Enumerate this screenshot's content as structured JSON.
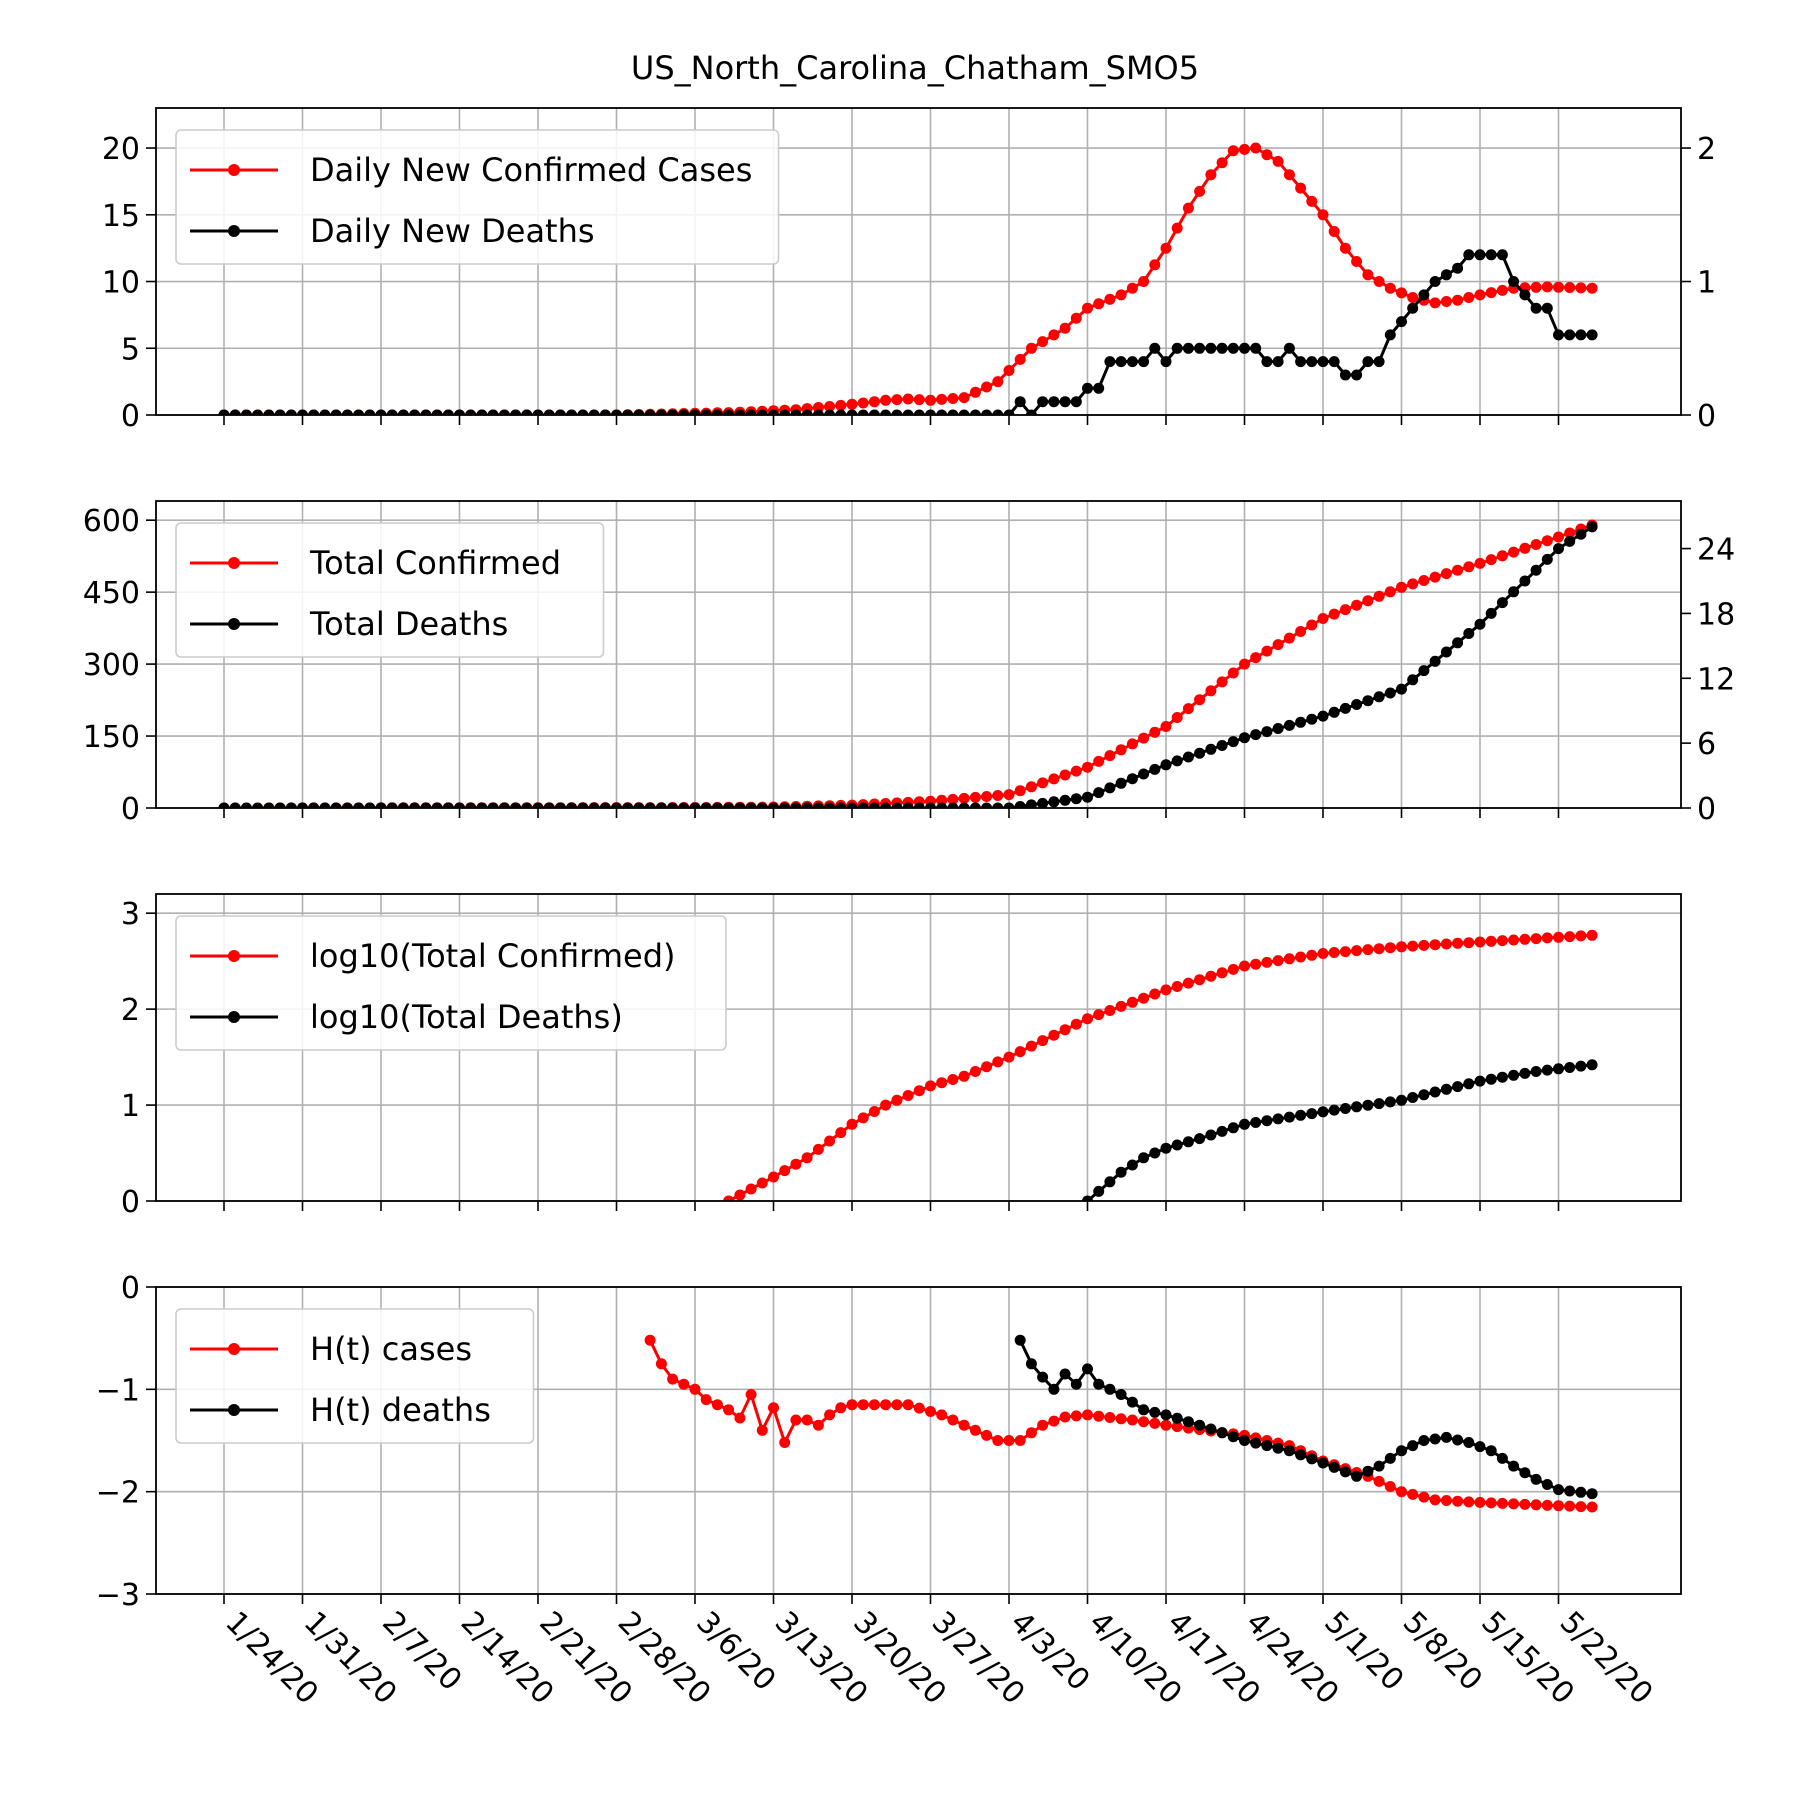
{
  "title": "US_North_Carolina_Chatham_SMO5",
  "x_tick_labels": [
    "1/24/20",
    "1/31/20",
    "2/7/20",
    "2/14/20",
    "2/21/20",
    "2/28/20",
    "3/6/20",
    "3/13/20",
    "3/20/20",
    "3/27/20",
    "4/3/20",
    "4/10/20",
    "4/17/20",
    "4/24/20",
    "5/1/20",
    "5/8/20",
    "5/15/20",
    "5/22/20"
  ],
  "chart_data": [
    {
      "type": "line",
      "panel": "daily",
      "x_type": "date",
      "x_range": [
        "1/24/20",
        "5/25/20"
      ],
      "ylim": [
        0,
        23
      ],
      "yticks": [
        0,
        5,
        10,
        15,
        20
      ],
      "y2lim": [
        0,
        2.3
      ],
      "y2ticks": [
        0,
        1,
        2
      ],
      "grid": true,
      "legend_position": "upper-left",
      "series": [
        {
          "name": "Daily New Confirmed Cases",
          "color": "#ff0000",
          "axis": "left",
          "points": [
            [
              "1/24/20",
              0
            ],
            [
              "2/28/20",
              0
            ],
            [
              "3/10/20",
              0.2
            ],
            [
              "3/15/20",
              0.4
            ],
            [
              "3/20/20",
              0.8
            ],
            [
              "3/23/20",
              1.1
            ],
            [
              "3/25/20",
              1.2
            ],
            [
              "3/27/20",
              1.1
            ],
            [
              "3/30/20",
              1.3
            ],
            [
              "4/2/20",
              2.5
            ],
            [
              "4/5/20",
              5
            ],
            [
              "4/8/20",
              6.5
            ],
            [
              "4/10/20",
              8
            ],
            [
              "4/13/20",
              9
            ],
            [
              "4/15/20",
              10
            ],
            [
              "4/17/20",
              12.5
            ],
            [
              "4/19/20",
              15.5
            ],
            [
              "4/21/20",
              18
            ],
            [
              "4/23/20",
              19.8
            ],
            [
              "4/25/20",
              20
            ],
            [
              "4/27/20",
              19
            ],
            [
              "4/29/20",
              17
            ],
            [
              "5/1/20",
              15
            ],
            [
              "5/3/20",
              12.5
            ],
            [
              "5/5/20",
              10.5
            ],
            [
              "5/7/20",
              9.5
            ],
            [
              "5/9/20",
              8.8
            ],
            [
              "5/11/20",
              8.4
            ],
            [
              "5/13/20",
              8.6
            ],
            [
              "5/15/20",
              9
            ],
            [
              "5/18/20",
              9.5
            ],
            [
              "5/21/20",
              9.6
            ],
            [
              "5/25/20",
              9.5
            ]
          ]
        },
        {
          "name": "Daily New Deaths",
          "color": "#000000",
          "axis": "right",
          "points": [
            [
              "1/24/20",
              0
            ],
            [
              "4/3/20",
              0
            ],
            [
              "4/4/20",
              0.1
            ],
            [
              "4/5/20",
              0
            ],
            [
              "4/6/20",
              0.1
            ],
            [
              "4/9/20",
              0.1
            ],
            [
              "4/10/20",
              0.2
            ],
            [
              "4/11/20",
              0.2
            ],
            [
              "4/12/20",
              0.4
            ],
            [
              "4/15/20",
              0.4
            ],
            [
              "4/16/20",
              0.5
            ],
            [
              "4/17/20",
              0.4
            ],
            [
              "4/18/20",
              0.5
            ],
            [
              "4/25/20",
              0.5
            ],
            [
              "4/26/20",
              0.4
            ],
            [
              "4/27/20",
              0.4
            ],
            [
              "4/28/20",
              0.5
            ],
            [
              "4/29/20",
              0.4
            ],
            [
              "5/2/20",
              0.4
            ],
            [
              "5/3/20",
              0.3
            ],
            [
              "5/4/20",
              0.3
            ],
            [
              "5/5/20",
              0.4
            ],
            [
              "5/6/20",
              0.4
            ],
            [
              "5/7/20",
              0.6
            ],
            [
              "5/9/20",
              0.8
            ],
            [
              "5/11/20",
              1.0
            ],
            [
              "5/13/20",
              1.1
            ],
            [
              "5/14/20",
              1.2
            ],
            [
              "5/17/20",
              1.2
            ],
            [
              "5/18/20",
              1.0
            ],
            [
              "5/19/20",
              0.9
            ],
            [
              "5/20/20",
              0.8
            ],
            [
              "5/21/20",
              0.8
            ],
            [
              "5/22/20",
              0.6
            ],
            [
              "5/25/20",
              0.6
            ]
          ]
        }
      ]
    },
    {
      "type": "line",
      "panel": "total",
      "x_type": "date",
      "x_range": [
        "1/24/20",
        "5/25/20"
      ],
      "ylim": [
        0,
        640
      ],
      "yticks": [
        0,
        150,
        300,
        450,
        600
      ],
      "y2lim": [
        0,
        28.4
      ],
      "y2ticks": [
        0,
        6,
        12,
        18,
        24
      ],
      "grid": true,
      "legend_position": "upper-left",
      "series": [
        {
          "name": "Total Confirmed",
          "color": "#ff0000",
          "axis": "left",
          "points": [
            [
              "1/24/20",
              0
            ],
            [
              "3/6/20",
              1
            ],
            [
              "3/13/20",
              2
            ],
            [
              "3/20/20",
              6
            ],
            [
              "3/27/20",
              14
            ],
            [
              "4/3/20",
              28
            ],
            [
              "4/10/20",
              85
            ],
            [
              "4/17/20",
              170
            ],
            [
              "4/24/20",
              300
            ],
            [
              "5/1/20",
              395
            ],
            [
              "5/8/20",
              460
            ],
            [
              "5/15/20",
              510
            ],
            [
              "5/22/20",
              565
            ],
            [
              "5/25/20",
              590
            ]
          ]
        },
        {
          "name": "Total Deaths",
          "color": "#000000",
          "axis": "right",
          "points": [
            [
              "1/24/20",
              0
            ],
            [
              "4/3/20",
              0
            ],
            [
              "4/10/20",
              1
            ],
            [
              "4/17/20",
              4
            ],
            [
              "4/24/20",
              6.5
            ],
            [
              "5/1/20",
              8.5
            ],
            [
              "5/8/20",
              11
            ],
            [
              "5/15/20",
              17
            ],
            [
              "5/22/20",
              24
            ],
            [
              "5/25/20",
              26
            ]
          ]
        }
      ]
    },
    {
      "type": "line",
      "panel": "log",
      "x_type": "date",
      "x_range": [
        "1/24/20",
        "5/25/20"
      ],
      "ylim": [
        0,
        3.2
      ],
      "yticks": [
        0,
        1,
        2,
        3
      ],
      "grid": true,
      "legend_position": "upper-left",
      "series": [
        {
          "name": "log10(Total Confirmed)",
          "color": "#ff0000",
          "axis": "left",
          "points": [
            [
              "3/9/20",
              0
            ],
            [
              "3/13/20",
              0.25
            ],
            [
              "3/16/20",
              0.45
            ],
            [
              "3/20/20",
              0.8
            ],
            [
              "3/23/20",
              1.0
            ],
            [
              "3/27/20",
              1.2
            ],
            [
              "3/30/20",
              1.3
            ],
            [
              "4/3/20",
              1.5
            ],
            [
              "4/10/20",
              1.9
            ],
            [
              "4/17/20",
              2.2
            ],
            [
              "4/24/20",
              2.45
            ],
            [
              "5/1/20",
              2.58
            ],
            [
              "5/8/20",
              2.65
            ],
            [
              "5/15/20",
              2.7
            ],
            [
              "5/25/20",
              2.77
            ]
          ]
        },
        {
          "name": "log10(Total Deaths)",
          "color": "#000000",
          "axis": "left",
          "points": [
            [
              "4/10/20",
              0
            ],
            [
              "4/11/20",
              0.1
            ],
            [
              "4/13/20",
              0.3
            ],
            [
              "4/15/20",
              0.45
            ],
            [
              "4/17/20",
              0.55
            ],
            [
              "4/20/20",
              0.65
            ],
            [
              "4/24/20",
              0.8
            ],
            [
              "5/1/20",
              0.93
            ],
            [
              "5/8/20",
              1.05
            ],
            [
              "5/15/20",
              1.25
            ],
            [
              "5/20/20",
              1.35
            ],
            [
              "5/25/20",
              1.42
            ]
          ]
        }
      ]
    },
    {
      "type": "line",
      "panel": "H(t)",
      "x_type": "date",
      "x_range": [
        "1/24/20",
        "5/25/20"
      ],
      "ylim": [
        -3,
        0
      ],
      "yticks": [
        -3,
        -2,
        -1,
        0
      ],
      "grid": true,
      "legend_position": "upper-left",
      "series": [
        {
          "name": "H(t) cases",
          "color": "#ff0000",
          "axis": "left",
          "points": [
            [
              "3/2/20",
              -0.52
            ],
            [
              "3/3/20",
              -0.75
            ],
            [
              "3/4/20",
              -0.9
            ],
            [
              "3/6/20",
              -1.0
            ],
            [
              "3/7/20",
              -1.1
            ],
            [
              "3/8/20",
              -1.15
            ],
            [
              "3/9/20",
              -1.2
            ],
            [
              "3/10/20",
              -1.28
            ],
            [
              "3/11/20",
              -1.05
            ],
            [
              "3/12/20",
              -1.4
            ],
            [
              "3/13/20",
              -1.18
            ],
            [
              "3/14/20",
              -1.52
            ],
            [
              "3/15/20",
              -1.3
            ],
            [
              "3/16/20",
              -1.3
            ],
            [
              "3/17/20",
              -1.35
            ],
            [
              "3/18/20",
              -1.25
            ],
            [
              "3/19/20",
              -1.18
            ],
            [
              "3/20/20",
              -1.15
            ],
            [
              "3/25/20",
              -1.15
            ],
            [
              "3/28/20",
              -1.25
            ],
            [
              "3/31/20",
              -1.4
            ],
            [
              "4/2/20",
              -1.5
            ],
            [
              "4/4/20",
              -1.5
            ],
            [
              "4/6/20",
              -1.35
            ],
            [
              "4/8/20",
              -1.27
            ],
            [
              "4/10/20",
              -1.25
            ],
            [
              "4/14/20",
              -1.3
            ],
            [
              "4/17/20",
              -1.35
            ],
            [
              "4/24/20",
              -1.45
            ],
            [
              "4/28/20",
              -1.55
            ],
            [
              "5/1/20",
              -1.7
            ],
            [
              "5/5/20",
              -1.85
            ],
            [
              "5/8/20",
              -2.0
            ],
            [
              "5/11/20",
              -2.08
            ],
            [
              "5/14/20",
              -2.1
            ],
            [
              "5/18/20",
              -2.12
            ],
            [
              "5/25/20",
              -2.15
            ]
          ]
        },
        {
          "name": "H(t) deaths",
          "color": "#000000",
          "axis": "left",
          "points": [
            [
              "4/4/20",
              -0.52
            ],
            [
              "4/5/20",
              -0.75
            ],
            [
              "4/6/20",
              -0.88
            ],
            [
              "4/7/20",
              -1.0
            ],
            [
              "4/8/20",
              -0.85
            ],
            [
              "4/9/20",
              -0.95
            ],
            [
              "4/10/20",
              -0.8
            ],
            [
              "4/11/20",
              -0.95
            ],
            [
              "4/12/20",
              -1.0
            ],
            [
              "4/13/20",
              -1.05
            ],
            [
              "4/15/20",
              -1.2
            ],
            [
              "4/17/20",
              -1.25
            ],
            [
              "4/20/20",
              -1.35
            ],
            [
              "4/24/20",
              -1.5
            ],
            [
              "4/28/20",
              -1.6
            ],
            [
              "5/1/20",
              -1.72
            ],
            [
              "5/4/20",
              -1.85
            ],
            [
              "5/6/20",
              -1.75
            ],
            [
              "5/8/20",
              -1.6
            ],
            [
              "5/10/20",
              -1.5
            ],
            [
              "5/12/20",
              -1.47
            ],
            [
              "5/14/20",
              -1.52
            ],
            [
              "5/16/20",
              -1.6
            ],
            [
              "5/18/20",
              -1.75
            ],
            [
              "5/20/20",
              -1.88
            ],
            [
              "5/22/20",
              -1.98
            ],
            [
              "5/25/20",
              -2.02
            ]
          ]
        }
      ]
    }
  ]
}
